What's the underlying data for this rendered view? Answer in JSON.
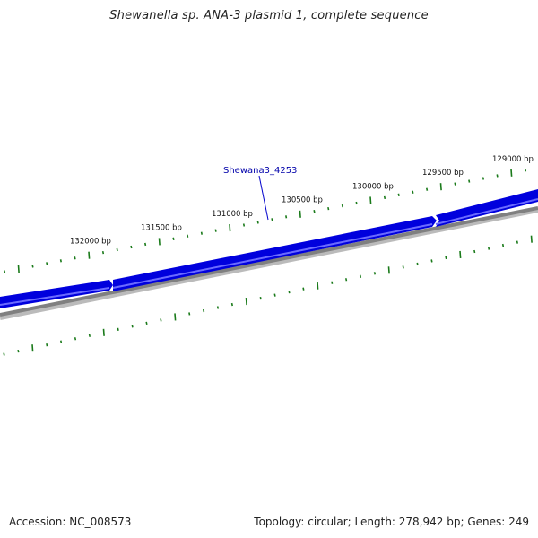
{
  "title": "Shewanella sp. ANA-3 plasmid 1, complete sequence",
  "footer": {
    "accession": "Accession: NC_008573",
    "summary": "Topology: circular; Length: 278,942 bp; Genes: 249"
  },
  "gene_label": "Shewana3_4253",
  "ruler": {
    "labels": [
      {
        "bp": 132000,
        "text": "132000 bp"
      },
      {
        "bp": 131500,
        "text": "131500 bp"
      },
      {
        "bp": 131000,
        "text": "131000 bp"
      },
      {
        "bp": 130500,
        "text": "130500 bp"
      },
      {
        "bp": 130000,
        "text": "130000 bp"
      },
      {
        "bp": 129500,
        "text": "129500 bp"
      },
      {
        "bp": 129000,
        "text": "129000 bp"
      }
    ]
  },
  "colors": {
    "gene": "#0000dd",
    "gene_light": "#6a6aff",
    "backbone": "#808080",
    "tick": "#1a7a1a",
    "label_line": "#0000cc"
  }
}
